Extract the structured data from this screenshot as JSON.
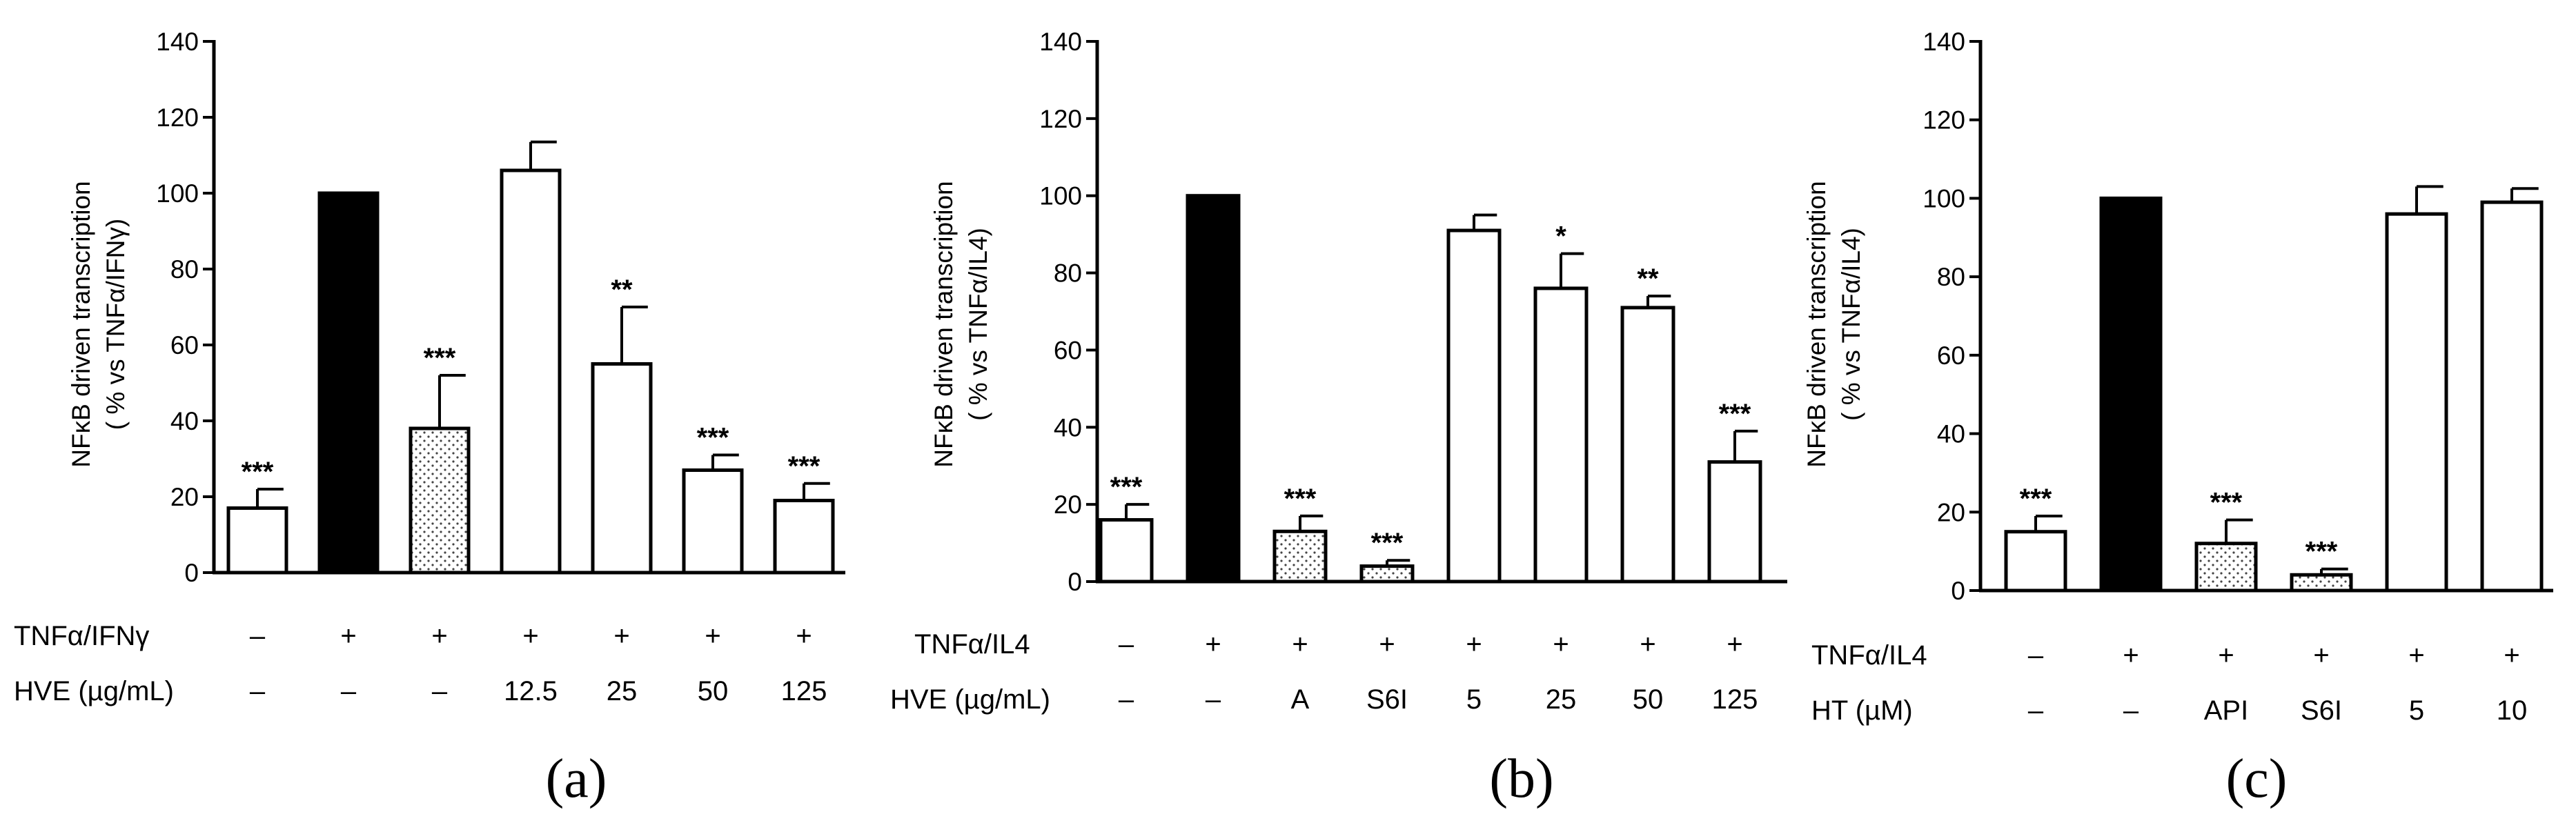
{
  "chart_data": [
    {
      "type": "bar",
      "panel_label": "(a)",
      "ylabel": "NFκB driven transcription",
      "ylabel2": "( % vs TNFα/IFNγ)",
      "ylim": [
        0,
        140
      ],
      "yticks": [
        0,
        20,
        40,
        60,
        80,
        100,
        120,
        140
      ],
      "fills": [
        "white",
        "black",
        "dotted",
        "white",
        "white",
        "white",
        "white"
      ],
      "values": [
        17,
        100,
        38,
        106,
        55,
        27,
        19
      ],
      "errors": [
        5,
        0,
        14,
        7.5,
        15,
        4,
        4.5
      ],
      "significance": [
        "***",
        "",
        "***",
        "",
        "**",
        "***",
        "***"
      ],
      "rows": [
        {
          "label": "TNFα/IFNγ",
          "cells": [
            "–",
            "+",
            "+",
            "+",
            "+",
            "+",
            "+"
          ]
        },
        {
          "label": "HVE (µg/mL)",
          "cells": [
            "–",
            "–",
            "–",
            "12.5",
            "25",
            "50",
            "125"
          ]
        }
      ]
    },
    {
      "type": "bar",
      "panel_label": "(b)",
      "ylabel": "NFκB driven transcription",
      "ylabel2": "( % vs TNFα/IL4)",
      "ylim": [
        0,
        140
      ],
      "yticks": [
        0,
        20,
        40,
        60,
        80,
        100,
        120,
        140
      ],
      "fills": [
        "white",
        "black",
        "dotted",
        "dotted",
        "white",
        "white",
        "white",
        "white"
      ],
      "values": [
        16,
        100,
        13,
        4,
        91,
        76,
        71,
        31
      ],
      "errors": [
        4,
        0,
        4,
        1.5,
        4,
        9,
        3,
        8
      ],
      "significance": [
        "***",
        "",
        "***",
        "***",
        "",
        "*",
        "**",
        "***"
      ],
      "rows": [
        {
          "label": "TNFα/IL4",
          "cells": [
            "–",
            "+",
            "+",
            "+",
            "+",
            "+",
            "+",
            "+"
          ]
        },
        {
          "label": "HVE (µg/mL)",
          "cells": [
            "–",
            "–",
            "A",
            "S6I",
            "5",
            "25",
            "50",
            "125"
          ]
        }
      ]
    },
    {
      "type": "bar",
      "panel_label": "(c)",
      "ylabel": "NFκB driven transcription",
      "ylabel2": "( % vs TNFα/IL4)",
      "ylim": [
        0,
        140
      ],
      "yticks": [
        0,
        20,
        40,
        60,
        80,
        100,
        120,
        140
      ],
      "fills": [
        "white",
        "black",
        "dotted",
        "dotted",
        "white",
        "white"
      ],
      "values": [
        15,
        100,
        12,
        4,
        96,
        99
      ],
      "errors": [
        4,
        0,
        6,
        1.5,
        7,
        3.5
      ],
      "significance": [
        "***",
        "",
        "***",
        "***",
        "",
        ""
      ],
      "rows": [
        {
          "label": "TNFα/IL4",
          "cells": [
            "–",
            "+",
            "+",
            "+",
            "+",
            "+"
          ]
        },
        {
          "label": "HT (µM)",
          "cells": [
            "–",
            "–",
            "API",
            "S6I",
            "5",
            "10"
          ]
        }
      ]
    }
  ]
}
